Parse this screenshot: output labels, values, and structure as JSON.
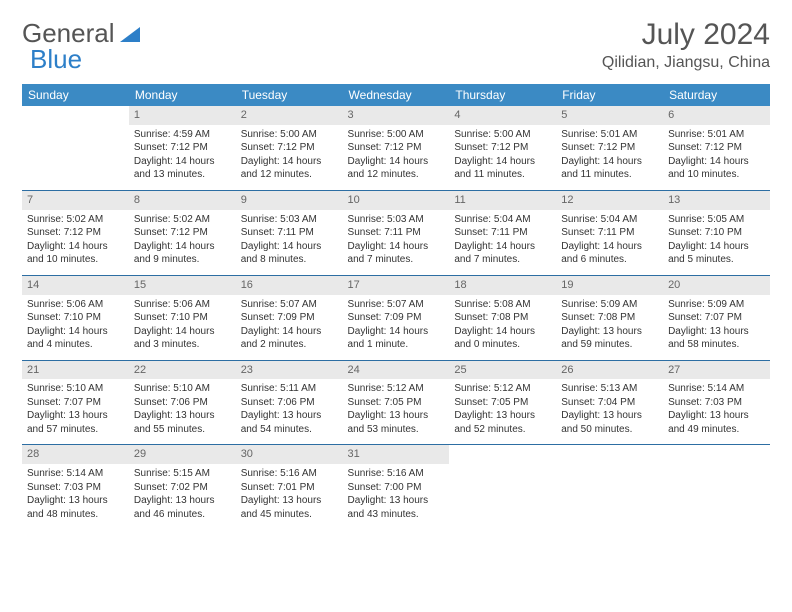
{
  "logo": {
    "text1": "General",
    "text2": "Blue"
  },
  "title": "July 2024",
  "subtitle": "Qilidian, Jiangsu, China",
  "header_bg": "#3b8ac4",
  "separator_color": "#2d6ea3",
  "daynum_bg": "#e9e9e9",
  "weekdays": [
    "Sunday",
    "Monday",
    "Tuesday",
    "Wednesday",
    "Thursday",
    "Friday",
    "Saturday"
  ],
  "weeks": [
    [
      null,
      {
        "n": "1",
        "sr": "Sunrise: 4:59 AM",
        "ss": "Sunset: 7:12 PM",
        "dl": "Daylight: 14 hours and 13 minutes."
      },
      {
        "n": "2",
        "sr": "Sunrise: 5:00 AM",
        "ss": "Sunset: 7:12 PM",
        "dl": "Daylight: 14 hours and 12 minutes."
      },
      {
        "n": "3",
        "sr": "Sunrise: 5:00 AM",
        "ss": "Sunset: 7:12 PM",
        "dl": "Daylight: 14 hours and 12 minutes."
      },
      {
        "n": "4",
        "sr": "Sunrise: 5:00 AM",
        "ss": "Sunset: 7:12 PM",
        "dl": "Daylight: 14 hours and 11 minutes."
      },
      {
        "n": "5",
        "sr": "Sunrise: 5:01 AM",
        "ss": "Sunset: 7:12 PM",
        "dl": "Daylight: 14 hours and 11 minutes."
      },
      {
        "n": "6",
        "sr": "Sunrise: 5:01 AM",
        "ss": "Sunset: 7:12 PM",
        "dl": "Daylight: 14 hours and 10 minutes."
      }
    ],
    [
      {
        "n": "7",
        "sr": "Sunrise: 5:02 AM",
        "ss": "Sunset: 7:12 PM",
        "dl": "Daylight: 14 hours and 10 minutes."
      },
      {
        "n": "8",
        "sr": "Sunrise: 5:02 AM",
        "ss": "Sunset: 7:12 PM",
        "dl": "Daylight: 14 hours and 9 minutes."
      },
      {
        "n": "9",
        "sr": "Sunrise: 5:03 AM",
        "ss": "Sunset: 7:11 PM",
        "dl": "Daylight: 14 hours and 8 minutes."
      },
      {
        "n": "10",
        "sr": "Sunrise: 5:03 AM",
        "ss": "Sunset: 7:11 PM",
        "dl": "Daylight: 14 hours and 7 minutes."
      },
      {
        "n": "11",
        "sr": "Sunrise: 5:04 AM",
        "ss": "Sunset: 7:11 PM",
        "dl": "Daylight: 14 hours and 7 minutes."
      },
      {
        "n": "12",
        "sr": "Sunrise: 5:04 AM",
        "ss": "Sunset: 7:11 PM",
        "dl": "Daylight: 14 hours and 6 minutes."
      },
      {
        "n": "13",
        "sr": "Sunrise: 5:05 AM",
        "ss": "Sunset: 7:10 PM",
        "dl": "Daylight: 14 hours and 5 minutes."
      }
    ],
    [
      {
        "n": "14",
        "sr": "Sunrise: 5:06 AM",
        "ss": "Sunset: 7:10 PM",
        "dl": "Daylight: 14 hours and 4 minutes."
      },
      {
        "n": "15",
        "sr": "Sunrise: 5:06 AM",
        "ss": "Sunset: 7:10 PM",
        "dl": "Daylight: 14 hours and 3 minutes."
      },
      {
        "n": "16",
        "sr": "Sunrise: 5:07 AM",
        "ss": "Sunset: 7:09 PM",
        "dl": "Daylight: 14 hours and 2 minutes."
      },
      {
        "n": "17",
        "sr": "Sunrise: 5:07 AM",
        "ss": "Sunset: 7:09 PM",
        "dl": "Daylight: 14 hours and 1 minute."
      },
      {
        "n": "18",
        "sr": "Sunrise: 5:08 AM",
        "ss": "Sunset: 7:08 PM",
        "dl": "Daylight: 14 hours and 0 minutes."
      },
      {
        "n": "19",
        "sr": "Sunrise: 5:09 AM",
        "ss": "Sunset: 7:08 PM",
        "dl": "Daylight: 13 hours and 59 minutes."
      },
      {
        "n": "20",
        "sr": "Sunrise: 5:09 AM",
        "ss": "Sunset: 7:07 PM",
        "dl": "Daylight: 13 hours and 58 minutes."
      }
    ],
    [
      {
        "n": "21",
        "sr": "Sunrise: 5:10 AM",
        "ss": "Sunset: 7:07 PM",
        "dl": "Daylight: 13 hours and 57 minutes."
      },
      {
        "n": "22",
        "sr": "Sunrise: 5:10 AM",
        "ss": "Sunset: 7:06 PM",
        "dl": "Daylight: 13 hours and 55 minutes."
      },
      {
        "n": "23",
        "sr": "Sunrise: 5:11 AM",
        "ss": "Sunset: 7:06 PM",
        "dl": "Daylight: 13 hours and 54 minutes."
      },
      {
        "n": "24",
        "sr": "Sunrise: 5:12 AM",
        "ss": "Sunset: 7:05 PM",
        "dl": "Daylight: 13 hours and 53 minutes."
      },
      {
        "n": "25",
        "sr": "Sunrise: 5:12 AM",
        "ss": "Sunset: 7:05 PM",
        "dl": "Daylight: 13 hours and 52 minutes."
      },
      {
        "n": "26",
        "sr": "Sunrise: 5:13 AM",
        "ss": "Sunset: 7:04 PM",
        "dl": "Daylight: 13 hours and 50 minutes."
      },
      {
        "n": "27",
        "sr": "Sunrise: 5:14 AM",
        "ss": "Sunset: 7:03 PM",
        "dl": "Daylight: 13 hours and 49 minutes."
      }
    ],
    [
      {
        "n": "28",
        "sr": "Sunrise: 5:14 AM",
        "ss": "Sunset: 7:03 PM",
        "dl": "Daylight: 13 hours and 48 minutes."
      },
      {
        "n": "29",
        "sr": "Sunrise: 5:15 AM",
        "ss": "Sunset: 7:02 PM",
        "dl": "Daylight: 13 hours and 46 minutes."
      },
      {
        "n": "30",
        "sr": "Sunrise: 5:16 AM",
        "ss": "Sunset: 7:01 PM",
        "dl": "Daylight: 13 hours and 45 minutes."
      },
      {
        "n": "31",
        "sr": "Sunrise: 5:16 AM",
        "ss": "Sunset: 7:00 PM",
        "dl": "Daylight: 13 hours and 43 minutes."
      },
      null,
      null,
      null
    ]
  ]
}
